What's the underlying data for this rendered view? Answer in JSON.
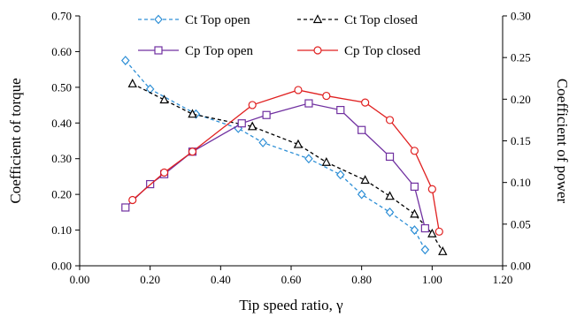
{
  "chart_data": {
    "type": "line",
    "xlabel": "Tip speed ratio, γ",
    "ylabel_left": "Coefficient of torque",
    "ylabel_right": "Coefficient of power",
    "xlim": [
      0,
      1.2
    ],
    "ylim_left": [
      0,
      0.7
    ],
    "ylim_right": [
      0,
      0.3
    ],
    "x_ticks": [
      "0.00",
      "0.20",
      "0.40",
      "0.60",
      "0.80",
      "1.00",
      "1.20"
    ],
    "y_left_ticks": [
      "0.00",
      "0.10",
      "0.20",
      "0.30",
      "0.40",
      "0.50",
      "0.60",
      "0.70"
    ],
    "y_right_ticks": [
      "0.00",
      "0.05",
      "0.10",
      "0.15",
      "0.20",
      "0.25",
      "0.30"
    ],
    "grid": false,
    "legend_position": "top",
    "series": [
      {
        "name": "Ct Top open",
        "axis": "left",
        "color": "#2e8fd6",
        "marker": "diamond",
        "line_style": "dashed",
        "x": [
          0.13,
          0.2,
          0.33,
          0.45,
          0.52,
          0.65,
          0.74,
          0.8,
          0.88,
          0.95,
          0.98
        ],
        "y": [
          0.575,
          0.495,
          0.425,
          0.385,
          0.345,
          0.3,
          0.255,
          0.2,
          0.15,
          0.1,
          0.045
        ]
      },
      {
        "name": "Ct Top closed",
        "axis": "left",
        "color": "#000000",
        "marker": "triangle",
        "line_style": "dashed",
        "x": [
          0.15,
          0.24,
          0.32,
          0.49,
          0.62,
          0.7,
          0.81,
          0.88,
          0.95,
          1.0,
          1.03
        ],
        "y": [
          0.51,
          0.465,
          0.425,
          0.39,
          0.34,
          0.29,
          0.24,
          0.195,
          0.145,
          0.09,
          0.04
        ]
      },
      {
        "name": "Cp Top open",
        "axis": "right",
        "color": "#7030a0",
        "marker": "square",
        "line_style": "solid",
        "x": [
          0.13,
          0.2,
          0.24,
          0.32,
          0.46,
          0.53,
          0.65,
          0.74,
          0.8,
          0.88,
          0.95,
          0.98
        ],
        "y": [
          0.07,
          0.098,
          0.11,
          0.137,
          0.171,
          0.181,
          0.195,
          0.187,
          0.163,
          0.131,
          0.095,
          0.045
        ]
      },
      {
        "name": "Cp Top closed",
        "axis": "right",
        "color": "#e02020",
        "marker": "circle",
        "line_style": "solid",
        "x": [
          0.15,
          0.24,
          0.32,
          0.49,
          0.62,
          0.7,
          0.81,
          0.88,
          0.95,
          1.0,
          1.02
        ],
        "y": [
          0.079,
          0.112,
          0.137,
          0.193,
          0.211,
          0.204,
          0.196,
          0.175,
          0.138,
          0.092,
          0.041
        ]
      }
    ]
  }
}
